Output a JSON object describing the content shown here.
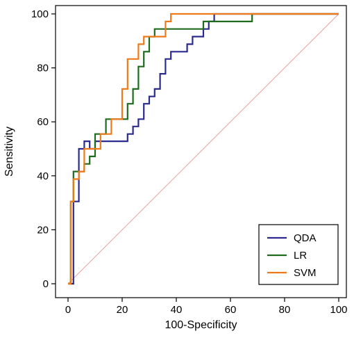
{
  "chart_data": {
    "type": "line",
    "title": "",
    "xlabel": "100-Specificity",
    "ylabel": "Sensitivity",
    "xlim": [
      0,
      100
    ],
    "ylim": [
      0,
      100
    ],
    "xticks": [
      0,
      20,
      40,
      60,
      80,
      100
    ],
    "yticks": [
      0,
      20,
      40,
      60,
      80,
      100
    ],
    "grid": false,
    "legend_position": "bottom-right",
    "reference_line": {
      "x": [
        0,
        100
      ],
      "y": [
        0,
        100
      ],
      "color": "#e8a0a0"
    },
    "series": [
      {
        "name": "QDA",
        "color": "#2b2b8f",
        "x": [
          0,
          2,
          2,
          4,
          4,
          6,
          6,
          8,
          8,
          10,
          10,
          12,
          12,
          22,
          22,
          24,
          24,
          26,
          26,
          28,
          28,
          30,
          30,
          32,
          32,
          34,
          34,
          36,
          36,
          38,
          38,
          44,
          44,
          46,
          46,
          50,
          50,
          52,
          52,
          54,
          54,
          62,
          62,
          100
        ],
        "y": [
          0,
          0,
          30.5,
          30.5,
          50,
          50,
          52.8,
          52.8,
          50,
          50,
          52.8,
          52.8,
          52.8,
          52.8,
          55.5,
          55.5,
          58.3,
          58.3,
          61,
          61,
          66.7,
          66.7,
          69.4,
          69.4,
          72.2,
          72.2,
          77.8,
          77.8,
          83.3,
          83.3,
          86,
          86,
          88.8,
          88.8,
          91.6,
          91.6,
          94.4,
          94.4,
          97.2,
          97.2,
          100,
          100,
          100,
          100
        ]
      },
      {
        "name": "LR",
        "color": "#1e6b1e",
        "x": [
          0,
          1,
          1,
          2,
          2,
          6,
          6,
          8,
          8,
          10,
          10,
          14,
          14,
          20,
          20,
          22,
          22,
          24,
          24,
          26,
          26,
          28,
          28,
          30,
          30,
          32,
          32,
          50,
          50,
          68,
          68,
          70,
          70,
          100
        ],
        "y": [
          0,
          0,
          30.5,
          30.5,
          41.6,
          41.6,
          44.4,
          44.4,
          47.2,
          47.2,
          55.5,
          55.5,
          61,
          61,
          61,
          61,
          66.7,
          66.7,
          72.2,
          72.2,
          80.5,
          80.5,
          86,
          86,
          91.6,
          91.6,
          94.4,
          94.4,
          97.2,
          97.2,
          100,
          100,
          100,
          100
        ]
      },
      {
        "name": "SVM",
        "color": "#f07a1a",
        "x": [
          0,
          1,
          1,
          2,
          2,
          4,
          4,
          6,
          6,
          12,
          12,
          16,
          16,
          20,
          20,
          22,
          22,
          26,
          26,
          28,
          28,
          30,
          30,
          36,
          36,
          38,
          38,
          100
        ],
        "y": [
          0,
          0,
          30.5,
          30.5,
          38.8,
          38.8,
          41.6,
          41.6,
          50,
          50,
          55.5,
          55.5,
          61,
          61,
          72.2,
          72.2,
          83.3,
          83.3,
          88.8,
          88.8,
          91.6,
          91.6,
          91.6,
          91.6,
          97.2,
          97.2,
          100,
          100
        ]
      }
    ]
  }
}
